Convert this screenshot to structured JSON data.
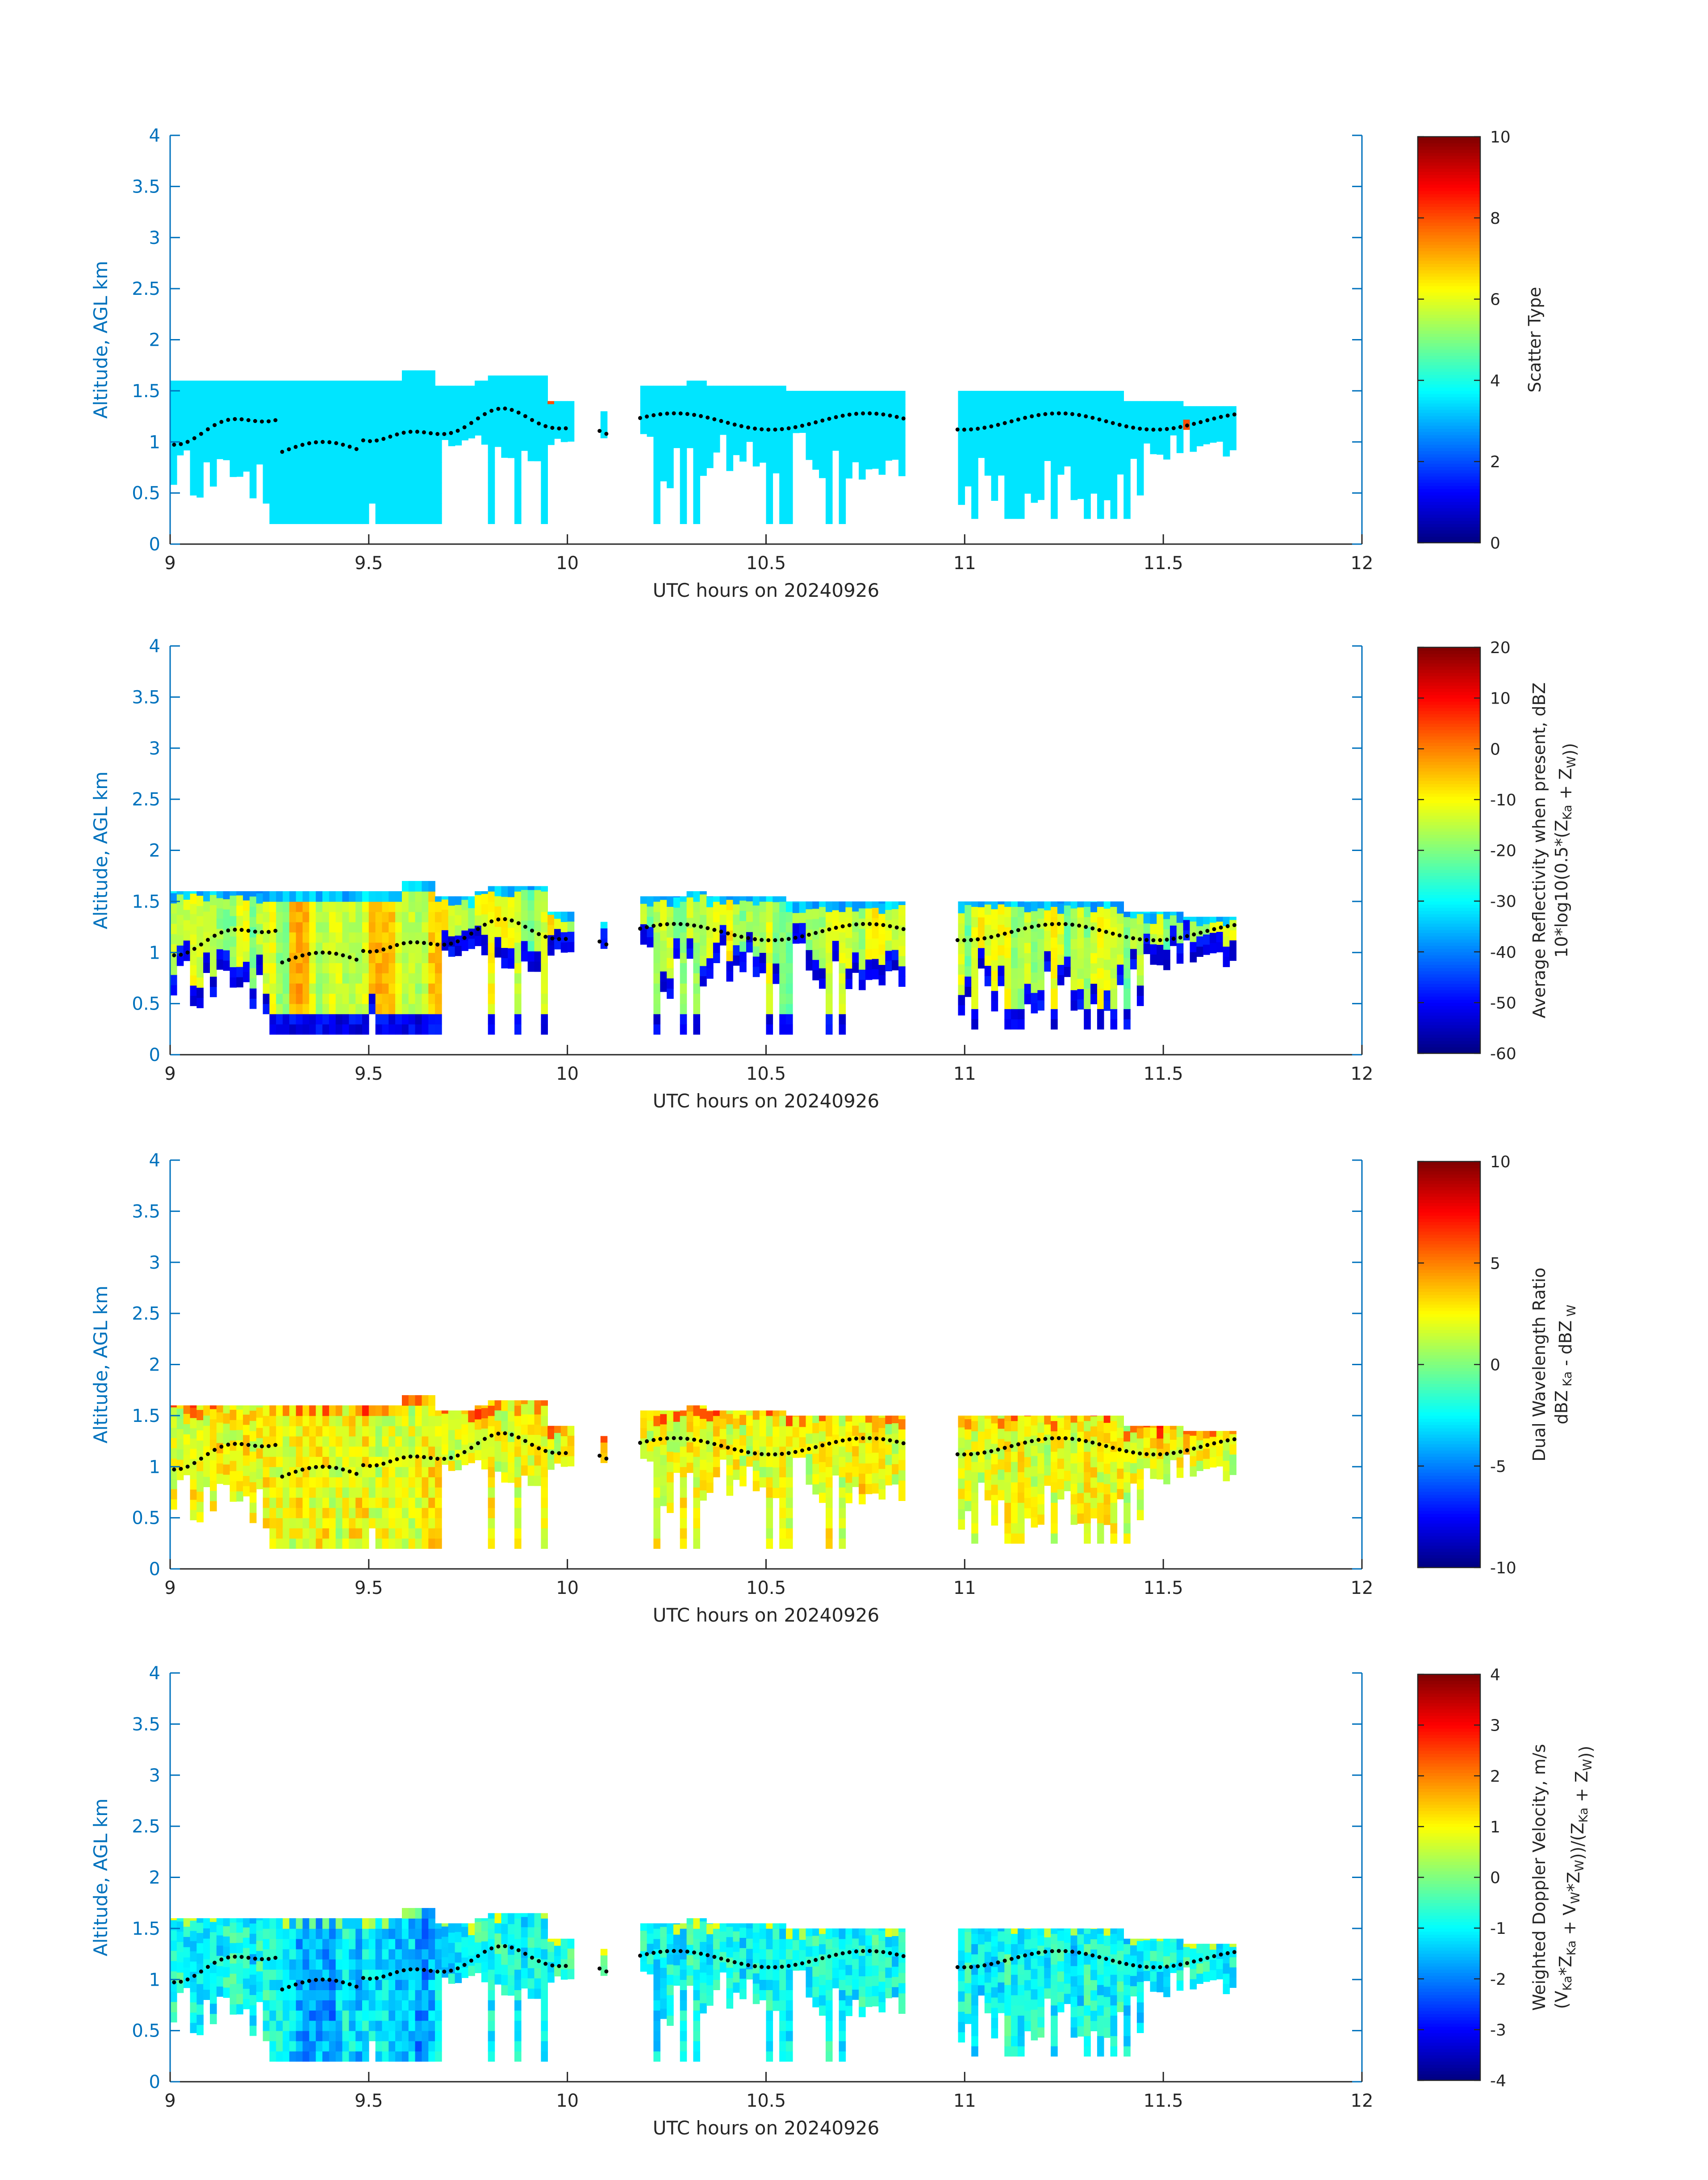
{
  "chart_data": [
    {
      "type": "heatmap",
      "name": "scatter_type",
      "xlabel": "UTC hours on 20240926",
      "ylabel": "Altitude, AGL km",
      "xlim": [
        9,
        12
      ],
      "ylim": [
        0,
        4
      ],
      "x_ticks": [
        "9",
        "9.5",
        "10",
        "10.5",
        "11",
        "11.5",
        "12"
      ],
      "y_ticks": [
        "0",
        "0.5",
        "1",
        "1.5",
        "2",
        "2.5",
        "3",
        "3.5",
        "4"
      ],
      "colorbar": {
        "label_parts": [
          [
            "Scatter Type",
            null
          ]
        ],
        "label2_parts": null,
        "range": [
          0,
          10
        ],
        "ticks": [
          "0",
          "2",
          "4",
          "6",
          "8",
          "10"
        ],
        "colormap": "jet"
      },
      "field": "scatter",
      "cloud_top_km": 1.6,
      "value_summary": "Nearly uniform value about 3.5 (cyan) across the echo, isolated red cells near 8",
      "echo_segments_utc": [
        [
          9.0,
          10.1
        ],
        [
          10.17,
          10.85
        ],
        [
          10.97,
          11.68
        ]
      ],
      "dotted_line_note": "black dotted line marks a height between 0.85 and 1.3 km"
    },
    {
      "type": "heatmap",
      "name": "reflectivity",
      "xlabel": "UTC hours on 20240926",
      "ylabel": "Altitude, AGL km",
      "xlim": [
        9,
        12
      ],
      "ylim": [
        0,
        4
      ],
      "x_ticks": [
        "9",
        "9.5",
        "10",
        "10.5",
        "11",
        "11.5",
        "12"
      ],
      "y_ticks": [
        "0",
        "0.5",
        "1",
        "1.5",
        "2",
        "2.5",
        "3",
        "3.5",
        "4"
      ],
      "colorbar": {
        "label_parts": [
          [
            "Average Reflectivity when present, dBZ",
            null
          ]
        ],
        "label2_parts": [
          [
            "10*log10(0.5*(Z",
            null
          ],
          [
            "Ka",
            "sub"
          ],
          [
            " + Z",
            null
          ],
          [
            "W",
            "sub"
          ],
          [
            "))",
            null
          ]
        ],
        "range": [
          -60,
          20
        ],
        "ticks": [
          "-60",
          "-50",
          "-40",
          "-30",
          "-20",
          "-10",
          "0",
          "10",
          "20"
        ],
        "colormap": "jet"
      },
      "field": "refl",
      "cloud_top_km": 1.6,
      "value_summary": "About -60 dBZ (dark blue) at the echo edges, -20 to -5 dBZ inside, up to about 0 dBZ between 9.3 and 9.7 UTC",
      "echo_segments_utc": [
        [
          9.0,
          10.1
        ],
        [
          10.17,
          10.85
        ],
        [
          10.97,
          11.68
        ]
      ]
    },
    {
      "type": "heatmap",
      "name": "dual_wavelength_ratio",
      "xlabel": "UTC hours on 20240926",
      "ylabel": "Altitude, AGL km",
      "xlim": [
        9,
        12
      ],
      "ylim": [
        0,
        4
      ],
      "x_ticks": [
        "9",
        "9.5",
        "10",
        "10.5",
        "11",
        "11.5",
        "12"
      ],
      "y_ticks": [
        "0",
        "0.5",
        "1",
        "1.5",
        "2",
        "2.5",
        "3",
        "3.5",
        "4"
      ],
      "colorbar": {
        "label_parts": [
          [
            "Dual Wavelength Ratio",
            null
          ]
        ],
        "label2_parts": [
          [
            "dBZ",
            null
          ],
          [
            " Ka",
            "sub"
          ],
          [
            " - dBZ",
            null
          ],
          [
            " W",
            "sub"
          ]
        ],
        "range": [
          -10,
          10
        ],
        "ticks": [
          "-10",
          "-5",
          "0",
          "5",
          "10"
        ],
        "colormap": "jet"
      },
      "field": "dwr",
      "cloud_top_km": 1.6,
      "value_summary": "Mostly 0 to 3 dB (yellow-green), up to 6-8 dB (red) near cloud top",
      "echo_segments_utc": [
        [
          9.0,
          10.1
        ],
        [
          10.17,
          10.85
        ],
        [
          10.97,
          11.68
        ]
      ]
    },
    {
      "type": "heatmap",
      "name": "doppler_velocity",
      "xlabel": "UTC hours on 20240926",
      "ylabel": "Altitude, AGL km",
      "xlim": [
        9,
        12
      ],
      "ylim": [
        0,
        4
      ],
      "x_ticks": [
        "9",
        "9.5",
        "10",
        "10.5",
        "11",
        "11.5",
        "12"
      ],
      "y_ticks": [
        "0",
        "0.5",
        "1",
        "1.5",
        "2",
        "2.5",
        "3",
        "3.5",
        "4"
      ],
      "colorbar": {
        "label_parts": [
          [
            "Weighted Doppler Velocity, m/s",
            null
          ]
        ],
        "label2_parts": [
          [
            "(V",
            null
          ],
          [
            "Ka",
            "sub"
          ],
          [
            "*Z",
            null
          ],
          [
            "Ka",
            "sub"
          ],
          [
            " + V",
            null
          ],
          [
            "W",
            "sub"
          ],
          [
            "*Z",
            null
          ],
          [
            "W",
            "sub"
          ],
          [
            "))/(Z",
            null
          ],
          [
            "Ka",
            "sub"
          ],
          [
            " + Z",
            null
          ],
          [
            "W",
            "sub"
          ],
          [
            "))",
            null
          ]
        ],
        "range": [
          -4,
          4
        ],
        "ticks": [
          "-4",
          "-3",
          "-2",
          "-1",
          "0",
          "1",
          "2",
          "3",
          "4"
        ],
        "colormap": "jet"
      },
      "field": "vel",
      "cloud_top_km": 1.6,
      "value_summary": "Mostly -2 to 0 m/s (cyan-green), down to -3 to -4 m/s (blue) between 9.3 and 9.7 UTC",
      "echo_segments_utc": [
        [
          9.0,
          10.1
        ],
        [
          10.17,
          10.85
        ],
        [
          10.97,
          11.68
        ]
      ]
    }
  ]
}
